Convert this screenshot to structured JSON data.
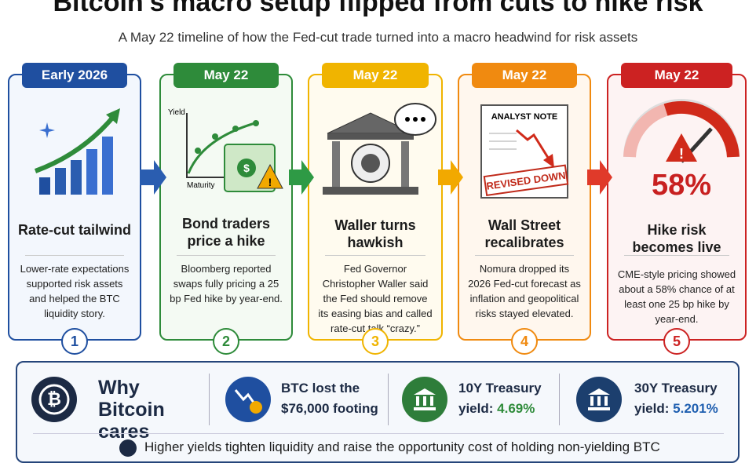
{
  "header": {
    "title": "Bitcoin's macro setup flipped from cuts to hike risk",
    "subtitle": "A May 22 timeline of how the Fed-cut trade turned into a macro headwind for risk assets"
  },
  "cards": [
    {
      "badge": "Early 2026",
      "heading": "Rate-cut tailwind",
      "body": "Lower-rate expectations supported risk assets and helped the BTC liquidity story.",
      "step": "1"
    },
    {
      "badge": "May 22",
      "heading": "Bond traders price a hike",
      "body": "Bloomberg reported swaps fully pricing a 25 bp Fed hike by year-end.",
      "step": "2",
      "y_axis": "Yield",
      "x_axis": "Maturity"
    },
    {
      "badge": "May 22",
      "heading": "Waller turns hawkish",
      "body": "Fed Governor Christopher Waller said the Fed should remove its easing bias and called rate-cut talk “crazy.”",
      "step": "3"
    },
    {
      "badge": "May 22",
      "heading": "Wall Street recalibrates",
      "body": "Nomura dropped its 2026 Fed-cut forecast as inflation and geopolitical risks stayed elevated.",
      "step": "4",
      "note": "ANALYST NOTE",
      "stamp": "REVISED DOWN"
    },
    {
      "badge": "May 22",
      "heading": "Hike risk becomes live",
      "body": "CME-style pricing showed about a 58% chance of at least one 25 bp hike by year-end.",
      "step": "5",
      "big": "58%"
    }
  ],
  "panel": {
    "heading": "Why Bitcoin cares",
    "items": [
      {
        "line1": "BTC lost the",
        "line2": "$76,000 footing"
      },
      {
        "line1": "10Y Treasury",
        "label": "yield:",
        "value": "4.69%"
      },
      {
        "line1": "30Y Treasury",
        "label": "yield:",
        "value": "5.201%"
      }
    ],
    "footer": "Higher yields tighten liquidity and raise the opportunity cost of holding non-yielding BTC"
  }
}
